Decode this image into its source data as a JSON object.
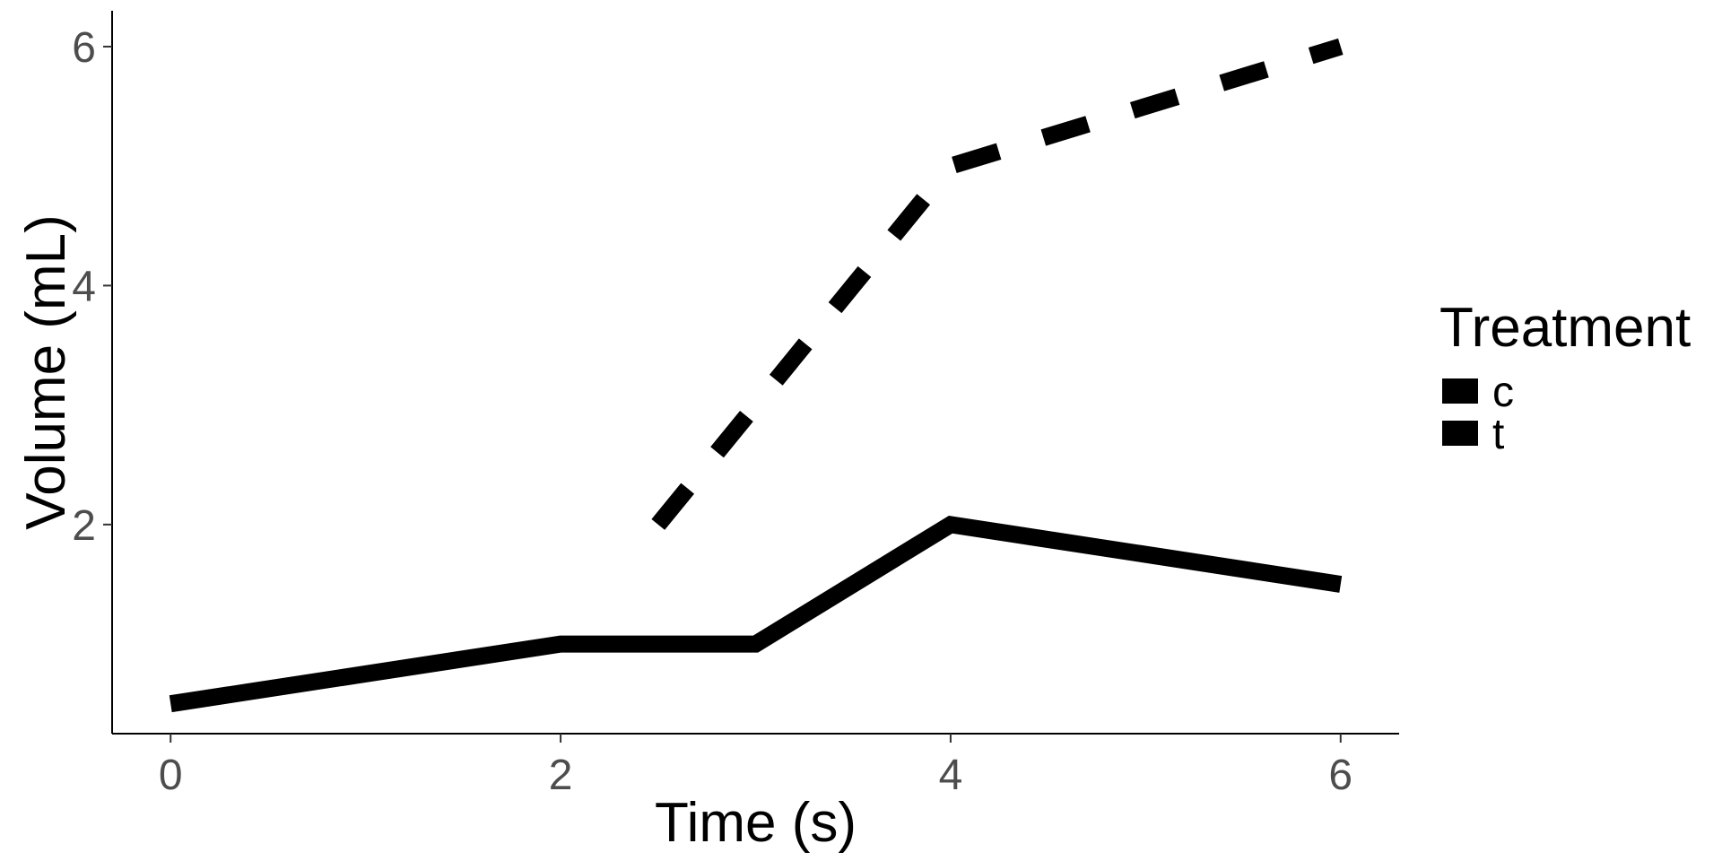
{
  "chart_data": {
    "type": "line",
    "title": "",
    "xlabel": "Time (s)",
    "ylabel": "Volume (mL)",
    "xlim": [
      -0.3,
      6.3
    ],
    "ylim": [
      0.25,
      6.3
    ],
    "x_ticks": [
      0,
      2,
      4,
      6
    ],
    "x_tick_labels": [
      "0",
      "2",
      "4",
      "6"
    ],
    "y_ticks": [
      2,
      4,
      6
    ],
    "y_tick_labels": [
      "2",
      "4",
      "6"
    ],
    "grid": false,
    "legend": {
      "title": "Treatment",
      "position": "right"
    },
    "series": [
      {
        "name": "c",
        "line_style": "solid",
        "color": "#000000",
        "x": [
          0,
          2,
          3,
          4,
          6
        ],
        "y": [
          0.5,
          1.0,
          1.0,
          2.0,
          1.5
        ]
      },
      {
        "name": "t",
        "line_style": "dashed",
        "color": "#000000",
        "x": [
          2.5,
          3,
          3.5,
          4,
          5,
          6
        ],
        "y": [
          2.0,
          3.0,
          4.0,
          5.0,
          5.5,
          6.0
        ]
      }
    ]
  }
}
